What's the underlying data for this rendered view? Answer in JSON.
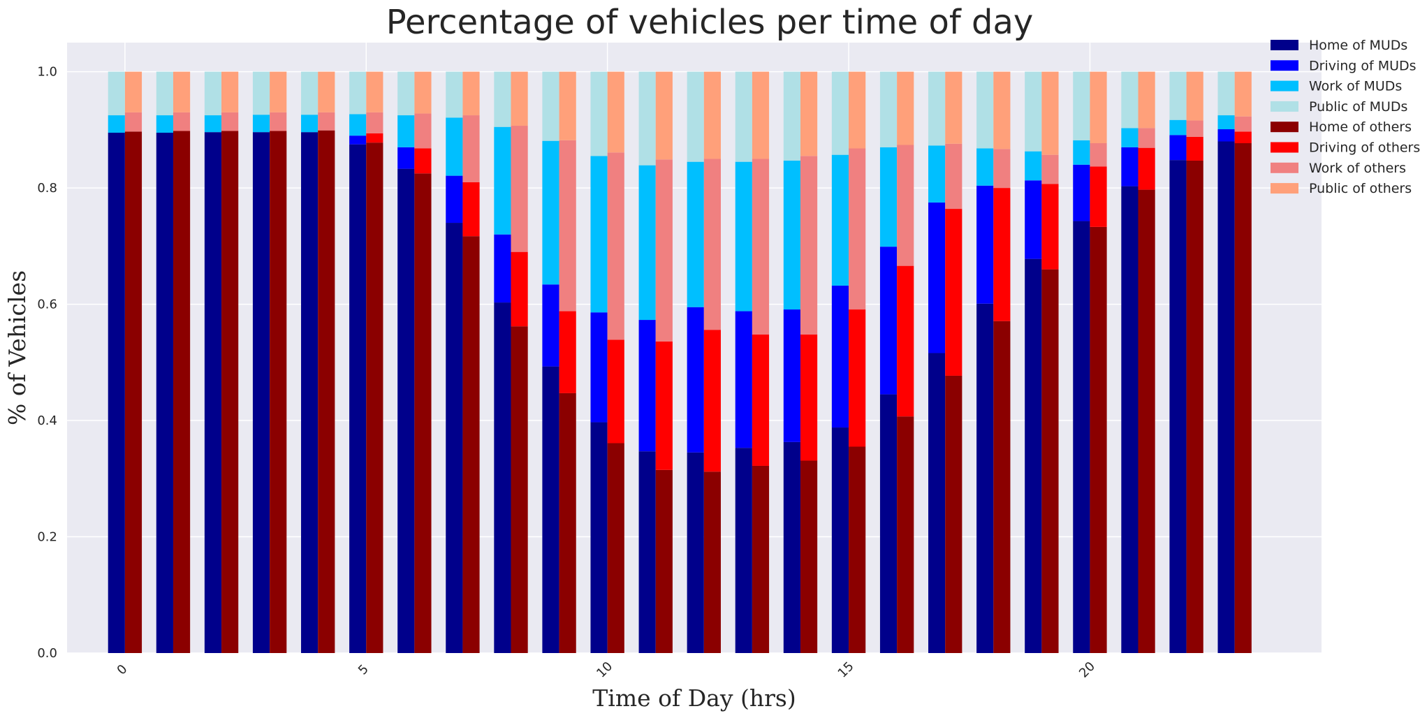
{
  "chart_data": {
    "type": "bar",
    "title": "Percentage of vehicles per time of day",
    "xlabel": "Time of Day (hrs)",
    "ylabel": "% of Vehicles",
    "x": [
      0,
      1,
      2,
      3,
      4,
      5,
      6,
      7,
      8,
      9,
      10,
      11,
      12,
      13,
      14,
      15,
      16,
      17,
      18,
      19,
      20,
      21,
      22,
      23
    ],
    "xticks": [
      0,
      5,
      10,
      15,
      20
    ],
    "yticks": [
      0.0,
      0.2,
      0.4,
      0.6,
      0.8,
      1.0
    ],
    "ytick_labels": [
      "0.0",
      "0.2",
      "0.4",
      "0.6",
      "0.8",
      "1.0"
    ],
    "xlim": [
      -1.2,
      24.8
    ],
    "ylim": [
      0,
      1.05
    ],
    "grid": true,
    "legend_position": "top-right",
    "stacked": true,
    "groups": [
      {
        "group": "MUDs",
        "series": [
          {
            "name": "Home of MUDs",
            "color": "#00008b",
            "values": [
              0.895,
              0.895,
              0.896,
              0.896,
              0.896,
              0.875,
              0.833,
              0.74,
              0.603,
              0.493,
              0.397,
              0.347,
              0.345,
              0.353,
              0.363,
              0.388,
              0.445,
              0.516,
              0.601,
              0.678,
              0.743,
              0.803,
              0.848,
              0.88
            ]
          },
          {
            "name": "Driving of MUDs",
            "color": "#0000ff",
            "values": [
              0.0,
              0.0,
              0.0,
              0.0,
              0.0,
              0.015,
              0.037,
              0.081,
              0.117,
              0.141,
              0.189,
              0.226,
              0.25,
              0.235,
              0.228,
              0.244,
              0.254,
              0.259,
              0.203,
              0.135,
              0.097,
              0.067,
              0.043,
              0.021
            ]
          },
          {
            "name": "Work of MUDs",
            "color": "#00bfff",
            "values": [
              0.03,
              0.03,
              0.029,
              0.03,
              0.03,
              0.037,
              0.055,
              0.1,
              0.185,
              0.247,
              0.269,
              0.266,
              0.25,
              0.257,
              0.256,
              0.225,
              0.171,
              0.098,
              0.064,
              0.05,
              0.042,
              0.033,
              0.026,
              0.024
            ]
          },
          {
            "name": "Public of MUDs",
            "color": "#b0e0e6",
            "values": [
              0.075,
              0.075,
              0.075,
              0.074,
              0.074,
              0.073,
              0.075,
              0.079,
              0.095,
              0.119,
              0.145,
              0.161,
              0.155,
              0.155,
              0.153,
              0.143,
              0.13,
              0.127,
              0.132,
              0.137,
              0.118,
              0.097,
              0.083,
              0.075
            ]
          }
        ]
      },
      {
        "group": "others",
        "series": [
          {
            "name": "Home of others",
            "color": "#8b0000",
            "values": [
              0.897,
              0.898,
              0.898,
              0.898,
              0.899,
              0.878,
              0.825,
              0.717,
              0.562,
              0.447,
              0.361,
              0.315,
              0.312,
              0.322,
              0.331,
              0.355,
              0.407,
              0.477,
              0.571,
              0.66,
              0.733,
              0.797,
              0.847,
              0.877
            ]
          },
          {
            "name": "Driving of others",
            "color": "#ff0000",
            "values": [
              0.0,
              0.0,
              0.0,
              0.0,
              0.0,
              0.016,
              0.043,
              0.093,
              0.128,
              0.141,
              0.178,
              0.221,
              0.244,
              0.226,
              0.217,
              0.236,
              0.259,
              0.287,
              0.229,
              0.147,
              0.104,
              0.072,
              0.041,
              0.02
            ]
          },
          {
            "name": "Work of others",
            "color": "#f08080",
            "values": [
              0.033,
              0.032,
              0.032,
              0.032,
              0.031,
              0.036,
              0.06,
              0.115,
              0.217,
              0.294,
              0.322,
              0.313,
              0.294,
              0.302,
              0.307,
              0.277,
              0.208,
              0.112,
              0.067,
              0.05,
              0.04,
              0.034,
              0.028,
              0.026
            ]
          },
          {
            "name": "Public of others",
            "color": "#ffa07a",
            "values": [
              0.07,
              0.07,
              0.07,
              0.07,
              0.07,
              0.07,
              0.072,
              0.075,
              0.093,
              0.118,
              0.139,
              0.151,
              0.15,
              0.15,
              0.145,
              0.132,
              0.126,
              0.124,
              0.133,
              0.143,
              0.123,
              0.097,
              0.084,
              0.077
            ]
          }
        ]
      }
    ]
  }
}
